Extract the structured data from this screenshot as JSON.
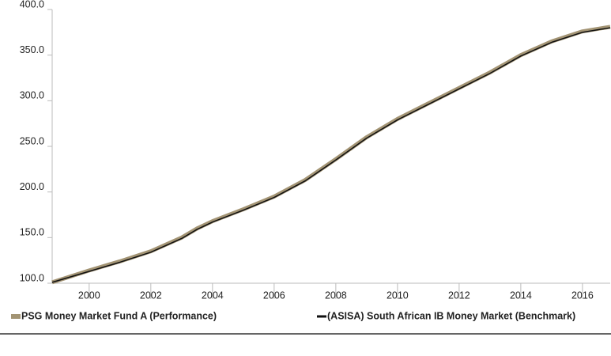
{
  "chart_data": {
    "type": "line",
    "x": [
      1998.8,
      2000,
      2001,
      2002,
      2003,
      2003.5,
      2004,
      2005,
      2006,
      2007,
      2008,
      2009,
      2010,
      2011,
      2012,
      2013,
      2014,
      2015,
      2016,
      2016.9
    ],
    "series": [
      {
        "name": "PSG Money Market Fund A (Performance)",
        "color": "#a39474",
        "values": [
          101,
          114,
          124,
          135,
          150,
          160,
          168,
          181,
          195,
          213,
          236,
          260,
          280,
          297,
          314,
          331,
          350,
          365,
          376,
          381
        ]
      },
      {
        "name": "(ASISA) South African IB Money Market (Benchmark)",
        "color": "#111111",
        "values": [
          101,
          113,
          123,
          134,
          149,
          159,
          167,
          180,
          194,
          212,
          235,
          259,
          279,
          296,
          313,
          330,
          349,
          364,
          375,
          380
        ]
      }
    ],
    "xlim": [
      1998.8,
      2016.9
    ],
    "xticks": [
      2000,
      2002,
      2004,
      2006,
      2008,
      2010,
      2012,
      2014,
      2016
    ],
    "ylim": [
      100,
      400
    ],
    "yticks": [
      {
        "value": 100,
        "label": "100.0"
      },
      {
        "value": 150,
        "label": "150.0"
      },
      {
        "value": 200,
        "label": "200.0"
      },
      {
        "value": 250,
        "label": "250.0"
      },
      {
        "value": 300,
        "label": "300.0"
      },
      {
        "value": 350,
        "label": "350.0"
      },
      {
        "value": 400,
        "label": "400.0"
      }
    ],
    "legend": "bottom"
  }
}
